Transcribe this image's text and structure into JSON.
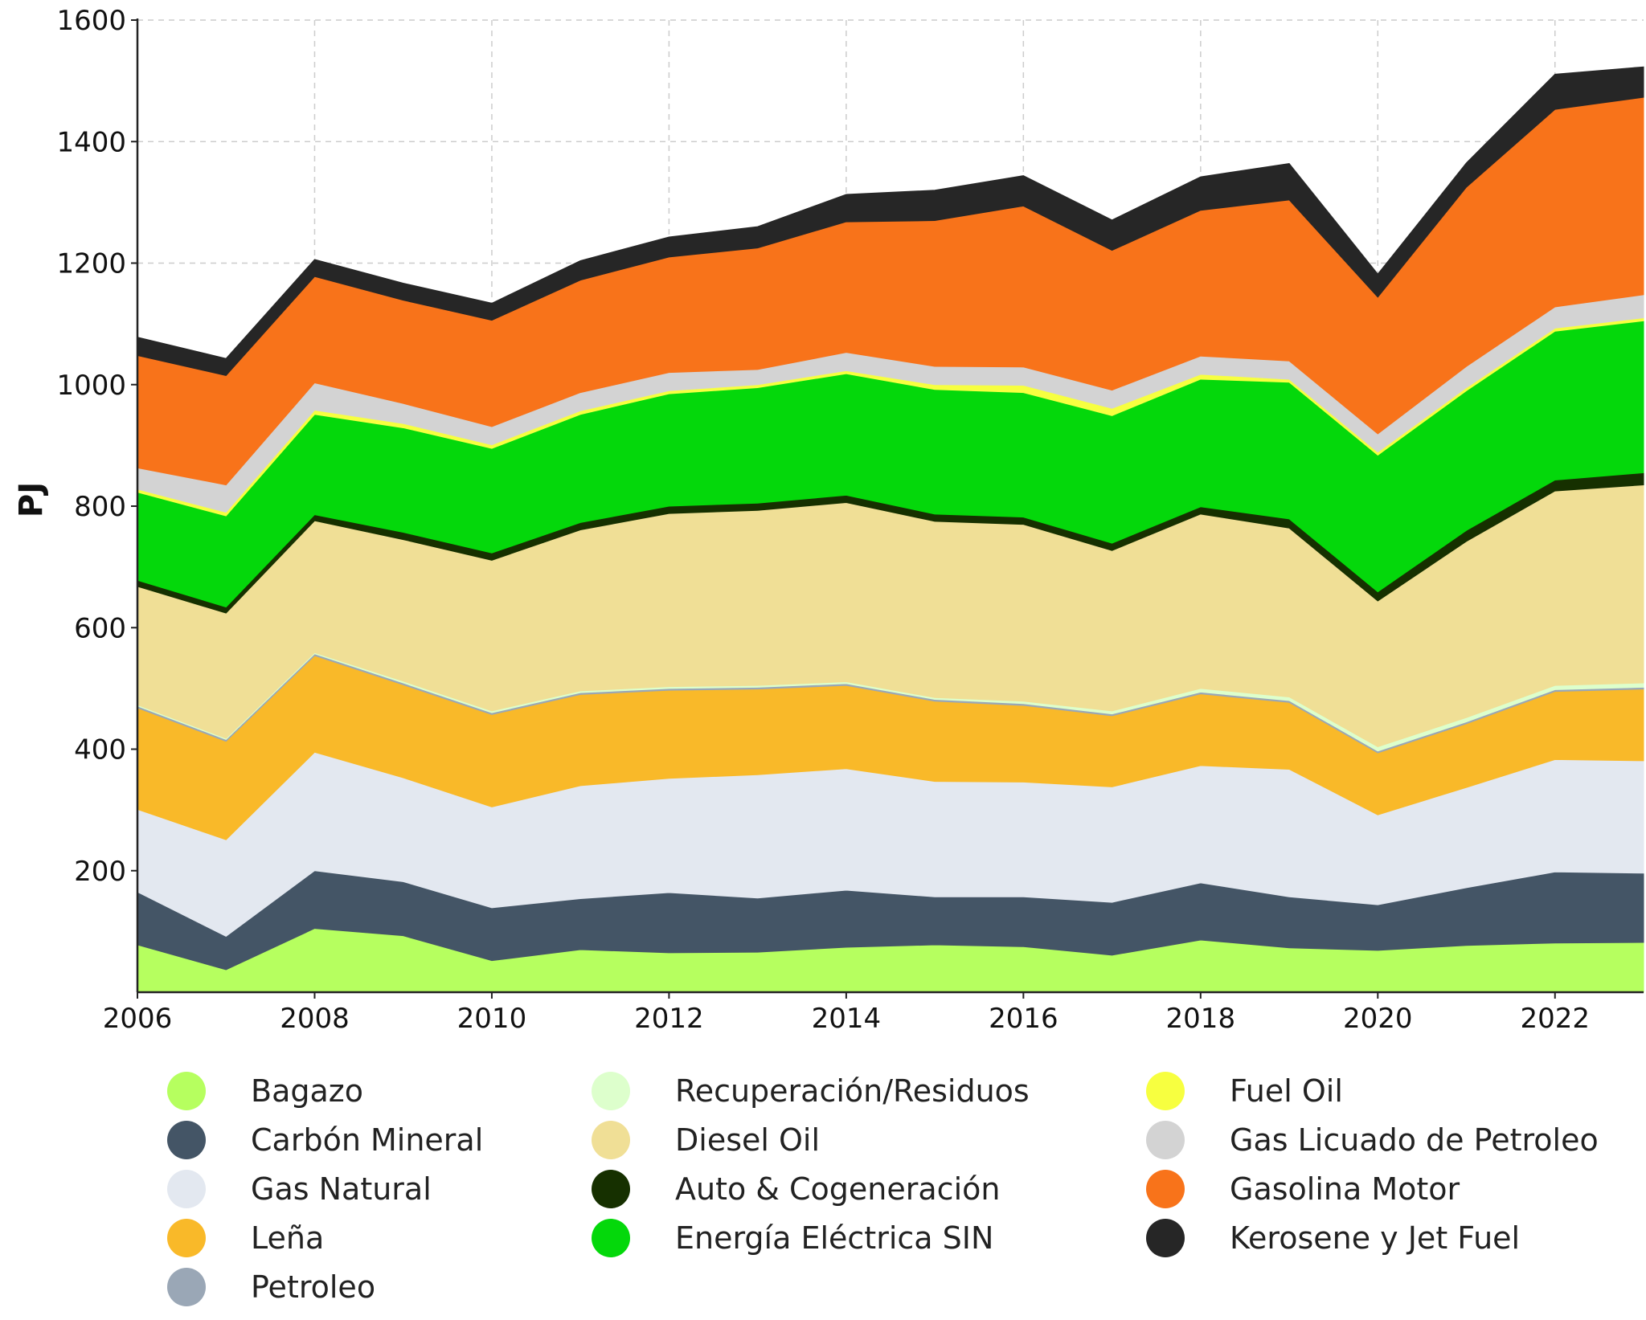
{
  "chart_data": {
    "type": "area",
    "stacked": true,
    "title": "",
    "xlabel": "",
    "ylabel": "PJ",
    "xlim": [
      2006,
      2023
    ],
    "ylim": [
      0,
      1600
    ],
    "x_ticks": [
      2006,
      2008,
      2010,
      2012,
      2014,
      2016,
      2018,
      2020,
      2022
    ],
    "y_ticks": [
      200,
      400,
      600,
      800,
      1000,
      1200,
      1400,
      1600
    ],
    "grid": true,
    "legend_position": "bottom",
    "x": [
      2006,
      2007,
      2008,
      2009,
      2010,
      2011,
      2012,
      2013,
      2014,
      2015,
      2016,
      2017,
      2018,
      2019,
      2020,
      2021,
      2022,
      2023
    ],
    "series": [
      {
        "name": "Bagazo",
        "color": "#b6ff5f",
        "values": [
          78,
          37,
          105,
          93,
          52,
          70,
          65,
          66,
          74,
          78,
          75,
          61,
          86,
          73,
          69,
          77,
          81,
          82
        ]
      },
      {
        "name": "Carbón Mineral",
        "color": "#445566",
        "values": [
          87,
          55,
          95,
          89,
          87,
          84,
          99,
          89,
          94,
          79,
          82,
          87,
          94,
          84,
          75,
          95,
          117,
          114
        ]
      },
      {
        "name": "Gas Natural",
        "color": "#e3e8f0",
        "values": [
          136,
          159,
          195,
          171,
          166,
          186,
          188,
          203,
          200,
          190,
          189,
          190,
          193,
          210,
          148,
          165,
          185,
          185
        ]
      },
      {
        "name": "Leña",
        "color": "#f9b929",
        "values": [
          167,
          162,
          159,
          153,
          152,
          150,
          145,
          141,
          137,
          132,
          126,
          117,
          118,
          110,
          102,
          105,
          112,
          118
        ]
      },
      {
        "name": "Petroleo",
        "color": "#9aa7b6",
        "values": [
          3,
          3,
          3,
          3,
          3,
          3,
          3,
          3,
          3,
          3,
          3,
          3,
          3,
          3,
          3,
          3,
          3,
          3
        ]
      },
      {
        "name": "Recuperación/Residuos",
        "color": "#ddffcc",
        "values": [
          2,
          2,
          2,
          3,
          3,
          3,
          3,
          3,
          3,
          3,
          4,
          5,
          6,
          6,
          7,
          7,
          7,
          7
        ]
      },
      {
        "name": "Diesel Oil",
        "color": "#f0df96",
        "values": [
          195,
          206,
          217,
          233,
          248,
          265,
          285,
          288,
          295,
          290,
          291,
          264,
          287,
          278,
          240,
          290,
          320,
          326
        ]
      },
      {
        "name": "Auto & Cogeneración",
        "color": "#163000",
        "values": [
          10,
          10,
          10,
          12,
          12,
          12,
          12,
          12,
          12,
          12,
          12,
          12,
          12,
          15,
          15,
          18,
          18,
          20
        ]
      },
      {
        "name": "Energía Eléctrica SIN",
        "color": "#04d80b",
        "values": [
          145,
          150,
          165,
          172,
          172,
          178,
          185,
          190,
          200,
          205,
          205,
          210,
          210,
          225,
          225,
          230,
          245,
          250
        ]
      },
      {
        "name": "Fuel Oil",
        "color": "#f7ff40",
        "values": [
          5,
          6,
          7,
          7,
          6,
          6,
          5,
          5,
          5,
          8,
          12,
          12,
          8,
          5,
          5,
          5,
          5,
          5
        ]
      },
      {
        "name": "Gas Licuado de Petroleo",
        "color": "#d3d3d3",
        "values": [
          35,
          45,
          45,
          33,
          30,
          30,
          30,
          25,
          30,
          30,
          30,
          30,
          30,
          30,
          30,
          35,
          35,
          38
        ]
      },
      {
        "name": "Gasolina Motor",
        "color": "#f8731a",
        "values": [
          185,
          180,
          175,
          170,
          175,
          185,
          190,
          200,
          215,
          240,
          265,
          230,
          240,
          265,
          225,
          295,
          325,
          325
        ]
      },
      {
        "name": "Kerosene y Jet Fuel",
        "color": "#262626",
        "values": [
          30,
          28,
          28,
          28,
          28,
          32,
          33,
          35,
          45,
          50,
          50,
          50,
          55,
          60,
          38,
          40,
          58,
          50
        ]
      }
    ]
  }
}
